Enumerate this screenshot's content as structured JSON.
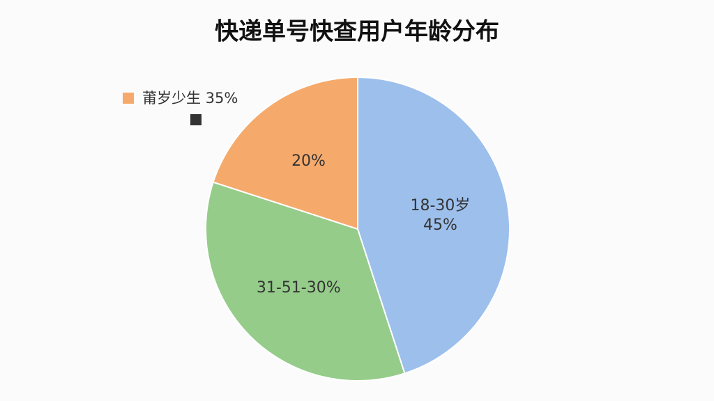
{
  "chart_data": {
    "type": "pie",
    "title": "快递单号快查用户年龄分布",
    "categories": [
      "18-30岁",
      "31-51-30%",
      null
    ],
    "values": [
      45,
      35,
      20
    ],
    "value_labels": [
      "45%",
      null,
      "20%"
    ],
    "colors": [
      "#9dbfec",
      "#95cc8a",
      "#f5aa6c"
    ],
    "annotation": {
      "text": "莆岁少生 35%",
      "color": "#f5aa6c"
    }
  }
}
